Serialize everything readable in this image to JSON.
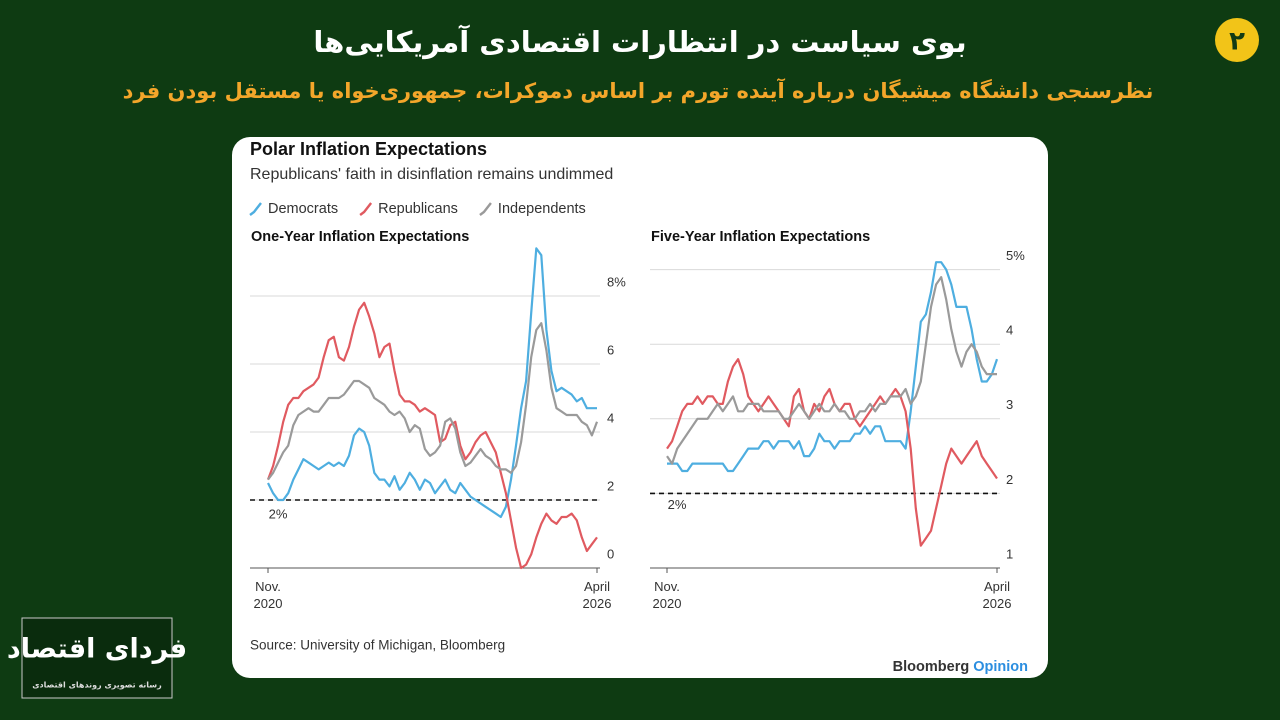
{
  "header": {
    "badge": "۲",
    "title": "بوی سیاست در انتظارات اقتصادی آمریکایی‌ها",
    "subtitle": "نظرسنجی دانشگاه میشیگان درباره آینده تورم بر اساس دموکرات، جمهوری‌خواه یا مستقل بودن فرد"
  },
  "card": {
    "title": "Polar Inflation Expectations",
    "subtitle": "Republicans' faith in disinflation remains undimmed",
    "source": "Source: University of Michigan, Bloomberg",
    "brand": "Bloomberg",
    "brand_suffix": "Opinion"
  },
  "logo": {
    "name": "فردای اقتصاد",
    "tagline": "رسانه تصویری روندهای اقتصادی"
  },
  "chart_data": [
    {
      "type": "line",
      "title": "One-Year Inflation Expectations",
      "legend": "top-left",
      "grid": true,
      "categories": [
        "Nov. 2020",
        null,
        null,
        null,
        null,
        null,
        null,
        null,
        null,
        null,
        null,
        null,
        null,
        null,
        null,
        null,
        null,
        null,
        null,
        null,
        null,
        null,
        null,
        null,
        null,
        null,
        null,
        null,
        null,
        null,
        null,
        null,
        null,
        null,
        null,
        null,
        null,
        null,
        null,
        null,
        null,
        null,
        null,
        null,
        null,
        null,
        null,
        null,
        null,
        null,
        null,
        null,
        null,
        null,
        null,
        null,
        null,
        null,
        null,
        null,
        null,
        null,
        null,
        null,
        null,
        "April 2026"
      ],
      "ylim": [
        0,
        9.5
      ],
      "yticks": [
        0,
        2,
        4,
        6,
        {
          "value": 8,
          "label": "8%"
        }
      ],
      "reference": {
        "value": 2,
        "label": "2%"
      },
      "series": [
        {
          "name": "Democrats",
          "color": "#4eaee0",
          "values": [
            2.5,
            2.2,
            2.0,
            2.0,
            2.2,
            2.6,
            2.9,
            3.2,
            3.1,
            3.0,
            2.9,
            3.0,
            3.1,
            3.0,
            3.1,
            3.0,
            3.3,
            3.9,
            4.1,
            4.0,
            3.6,
            2.8,
            2.6,
            2.6,
            2.4,
            2.7,
            2.3,
            2.5,
            2.8,
            2.6,
            2.3,
            2.6,
            2.5,
            2.2,
            2.4,
            2.6,
            2.3,
            2.2,
            2.5,
            2.3,
            2.1,
            2.0,
            1.9,
            1.8,
            1.7,
            1.6,
            1.5,
            1.8,
            2.6,
            3.6,
            4.7,
            5.5,
            7.5,
            9.4,
            9.2,
            7.0,
            5.8,
            5.2,
            5.3,
            5.2,
            5.1,
            4.9,
            5.0,
            4.7,
            4.7,
            4.7
          ]
        },
        {
          "name": "Republicans",
          "color": "#e05a60",
          "values": [
            2.6,
            3.0,
            3.6,
            4.3,
            4.8,
            5.0,
            5.0,
            5.2,
            5.3,
            5.4,
            5.6,
            6.2,
            6.7,
            6.8,
            6.2,
            6.1,
            6.5,
            7.1,
            7.6,
            7.8,
            7.4,
            6.9,
            6.2,
            6.5,
            6.6,
            5.8,
            5.1,
            4.9,
            4.9,
            4.8,
            4.6,
            4.7,
            4.6,
            4.5,
            3.7,
            3.8,
            4.2,
            4.3,
            3.6,
            3.2,
            3.4,
            3.7,
            3.9,
            4.0,
            3.7,
            3.4,
            2.8,
            2.2,
            1.4,
            0.6,
            0.0,
            0.1,
            0.4,
            0.9,
            1.3,
            1.6,
            1.4,
            1.3,
            1.5,
            1.5,
            1.6,
            1.4,
            0.9,
            0.5,
            0.7,
            0.9
          ]
        },
        {
          "name": "Independents",
          "color": "#9a9a9a",
          "values": [
            2.6,
            2.8,
            3.1,
            3.4,
            3.6,
            4.2,
            4.5,
            4.6,
            4.7,
            4.6,
            4.6,
            4.8,
            5.0,
            5.0,
            5.0,
            5.1,
            5.3,
            5.5,
            5.5,
            5.4,
            5.3,
            5.0,
            4.9,
            4.8,
            4.6,
            4.5,
            4.6,
            4.4,
            4.0,
            4.2,
            4.1,
            3.5,
            3.3,
            3.4,
            3.6,
            4.3,
            4.4,
            4.1,
            3.4,
            3.0,
            3.1,
            3.3,
            3.5,
            3.3,
            3.2,
            3.0,
            2.9,
            2.9,
            2.8,
            3.0,
            3.7,
            4.8,
            6.2,
            7.0,
            7.2,
            6.4,
            5.3,
            4.7,
            4.6,
            4.5,
            4.5,
            4.5,
            4.3,
            4.2,
            3.9,
            4.3
          ]
        }
      ]
    },
    {
      "type": "line",
      "title": "Five-Year Inflation Expectations",
      "grid": true,
      "categories": [
        "Nov. 2020",
        null,
        null,
        null,
        null,
        null,
        null,
        null,
        null,
        null,
        null,
        null,
        null,
        null,
        null,
        null,
        null,
        null,
        null,
        null,
        null,
        null,
        null,
        null,
        null,
        null,
        null,
        null,
        null,
        null,
        null,
        null,
        null,
        null,
        null,
        null,
        null,
        null,
        null,
        null,
        null,
        null,
        null,
        null,
        null,
        null,
        null,
        null,
        null,
        null,
        null,
        null,
        null,
        null,
        null,
        null,
        null,
        null,
        null,
        null,
        null,
        null,
        null,
        null,
        null,
        "April 2026"
      ],
      "ylim": [
        1,
        5.33
      ],
      "yticks": [
        1,
        2,
        3,
        4,
        {
          "value": 5,
          "label": "5%"
        }
      ],
      "reference": {
        "value": 2,
        "label": "2%"
      },
      "series": [
        {
          "name": "Democrats",
          "color": "#4eaee0",
          "values": [
            2.4,
            2.4,
            2.4,
            2.3,
            2.3,
            2.4,
            2.4,
            2.4,
            2.4,
            2.4,
            2.4,
            2.4,
            2.3,
            2.3,
            2.4,
            2.5,
            2.6,
            2.6,
            2.6,
            2.7,
            2.7,
            2.6,
            2.7,
            2.7,
            2.7,
            2.6,
            2.7,
            2.5,
            2.5,
            2.6,
            2.8,
            2.7,
            2.7,
            2.6,
            2.7,
            2.7,
            2.7,
            2.8,
            2.8,
            2.9,
            2.8,
            2.9,
            2.9,
            2.7,
            2.7,
            2.7,
            2.7,
            2.6,
            3.1,
            3.7,
            4.3,
            4.4,
            4.7,
            5.1,
            5.1,
            5.0,
            4.8,
            4.5,
            4.5,
            4.5,
            4.2,
            3.8,
            3.5,
            3.5,
            3.6,
            3.8
          ]
        },
        {
          "name": "Republicans",
          "color": "#e05a60",
          "values": [
            2.6,
            2.7,
            2.9,
            3.1,
            3.2,
            3.2,
            3.3,
            3.2,
            3.3,
            3.3,
            3.2,
            3.2,
            3.5,
            3.7,
            3.8,
            3.6,
            3.3,
            3.2,
            3.1,
            3.2,
            3.3,
            3.2,
            3.1,
            3.0,
            2.9,
            3.3,
            3.4,
            3.1,
            3.0,
            3.2,
            3.1,
            3.3,
            3.4,
            3.2,
            3.1,
            3.2,
            3.2,
            3.0,
            2.9,
            3.0,
            3.1,
            3.2,
            3.3,
            3.2,
            3.3,
            3.4,
            3.3,
            3.1,
            2.6,
            1.8,
            1.3,
            1.4,
            1.5,
            1.8,
            2.1,
            2.4,
            2.6,
            2.5,
            2.4,
            2.5,
            2.6,
            2.7,
            2.5,
            2.4,
            2.3,
            2.2
          ]
        },
        {
          "name": "Independents",
          "color": "#9a9a9a",
          "values": [
            2.5,
            2.4,
            2.6,
            2.7,
            2.8,
            2.9,
            3.0,
            3.0,
            3.0,
            3.1,
            3.2,
            3.1,
            3.2,
            3.3,
            3.1,
            3.1,
            3.2,
            3.2,
            3.2,
            3.1,
            3.1,
            3.1,
            3.1,
            3.0,
            3.0,
            3.1,
            3.2,
            3.1,
            3.0,
            3.1,
            3.2,
            3.1,
            3.1,
            3.2,
            3.1,
            3.1,
            3.0,
            3.0,
            3.1,
            3.1,
            3.2,
            3.1,
            3.2,
            3.2,
            3.3,
            3.3,
            3.3,
            3.4,
            3.2,
            3.3,
            3.5,
            4.0,
            4.5,
            4.8,
            4.9,
            4.6,
            4.2,
            3.9,
            3.7,
            3.9,
            4.0,
            3.9,
            3.7,
            3.6,
            3.6,
            3.6
          ]
        }
      ]
    }
  ]
}
